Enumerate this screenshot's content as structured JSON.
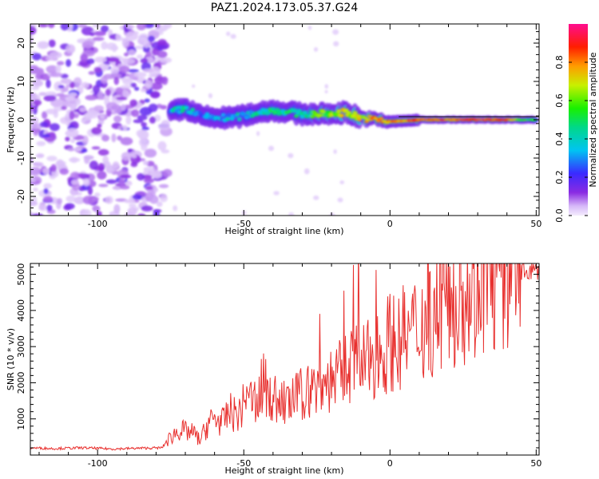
{
  "title": "PAZ1.2024.173.05.37.G24",
  "chart_data": [
    {
      "type": "heatmap",
      "title": "PAZ1.2024.173.05.37.G24",
      "xlabel": "Height of straight line (km)",
      "ylabel": "Frequency (Hz)",
      "xlim": [
        -123,
        51
      ],
      "ylim": [
        -25,
        25
      ],
      "xticks": [
        -100,
        -50,
        0,
        50
      ],
      "yticks": [
        20,
        10,
        0,
        -10,
        -20
      ],
      "grid": false,
      "colorbar": {
        "label": "Normalized spectral amplitude",
        "range": [
          0,
          1
        ],
        "ticks": [
          0.0,
          0.2,
          0.4,
          0.6,
          0.8
        ],
        "colormap": "rainbow (purple-blue-cyan-green-yellow-red-pink)"
      },
      "description_values": {
        "noise_region_x": [
          -123,
          -76
        ],
        "signal_track": [
          {
            "x": -75,
            "freq": 2.0,
            "amp": 0.35
          },
          {
            "x": -70,
            "freq": 3.0,
            "amp": 0.45
          },
          {
            "x": -65,
            "freq": 1.0,
            "amp": 0.3
          },
          {
            "x": -60,
            "freq": 0.5,
            "amp": 0.3
          },
          {
            "x": -55,
            "freq": 0.5,
            "amp": 0.35
          },
          {
            "x": -50,
            "freq": 1.0,
            "amp": 0.35
          },
          {
            "x": -45,
            "freq": 2.0,
            "amp": 0.4
          },
          {
            "x": -40,
            "freq": 2.5,
            "amp": 0.45
          },
          {
            "x": -35,
            "freq": 2.0,
            "amp": 0.45
          },
          {
            "x": -30,
            "freq": 1.5,
            "amp": 0.45
          },
          {
            "x": -25,
            "freq": 1.5,
            "amp": 0.55
          },
          {
            "x": -20,
            "freq": 1.5,
            "amp": 0.6
          },
          {
            "x": -15,
            "freq": 2.0,
            "amp": 0.7
          },
          {
            "x": -10,
            "freq": 0.5,
            "amp": 0.7
          },
          {
            "x": -5,
            "freq": 0.0,
            "amp": 0.8
          },
          {
            "x": 0,
            "freq": -0.5,
            "amp": 0.8
          },
          {
            "x": 5,
            "freq": -0.3,
            "amp": 0.8
          },
          {
            "x": 10,
            "freq": 0.0,
            "amp": 0.85
          },
          {
            "x": 15,
            "freq": 0.0,
            "amp": 0.9
          },
          {
            "x": 20,
            "freq": 0.0,
            "amp": 0.85
          },
          {
            "x": 25,
            "freq": 0.0,
            "amp": 0.85
          },
          {
            "x": 30,
            "freq": 0.0,
            "amp": 0.9
          },
          {
            "x": 35,
            "freq": 0.0,
            "amp": 0.9
          },
          {
            "x": 40,
            "freq": 0.0,
            "amp": 0.85
          },
          {
            "x": 45,
            "freq": 0.0,
            "amp": 0.55
          },
          {
            "x": 50,
            "freq": 0.0,
            "amp": 0.45
          }
        ]
      }
    },
    {
      "type": "line",
      "xlabel": "Height of straight line (km)",
      "ylabel": "SNR (10 * v/v)",
      "xlim": [
        -123,
        51
      ],
      "ylim": [
        0,
        5300
      ],
      "xticks": [
        -100,
        -50,
        0,
        50
      ],
      "yticks": [
        1000,
        2000,
        3000,
        4000,
        5000
      ],
      "grid": false,
      "color": "#e8302e",
      "series": [
        {
          "x": [
            -123,
            -115,
            -105,
            -95,
            -85,
            -78,
            -75,
            -72,
            -70,
            -67,
            -65,
            -62,
            -60,
            -57,
            -55,
            -52,
            -50,
            -47,
            -45,
            -43,
            -41,
            -38,
            -35,
            -32,
            -30,
            -27,
            -25,
            -22,
            -20,
            -17,
            -15,
            -13,
            -10,
            -7,
            -5,
            -2,
            0,
            3,
            5,
            8,
            10,
            13,
            15,
            17,
            20,
            23,
            25,
            28,
            30,
            33,
            35,
            38,
            40,
            43,
            45,
            48,
            51
          ],
          "values": [
            200,
            180,
            200,
            170,
            190,
            200,
            500,
            700,
            650,
            600,
            400,
            900,
            1000,
            900,
            1200,
            1100,
            1400,
            1500,
            1700,
            2000,
            1600,
            1500,
            1400,
            1600,
            1700,
            1800,
            1900,
            2000,
            2100,
            2200,
            2400,
            2600,
            2500,
            2600,
            2800,
            2900,
            3200,
            3100,
            3300,
            3400,
            3600,
            3700,
            3900,
            4000,
            4200,
            4300,
            4500,
            4600,
            4700,
            4800,
            4850,
            4900,
            5000,
            5000,
            5050,
            5100,
            5100
          ]
        }
      ]
    }
  ]
}
